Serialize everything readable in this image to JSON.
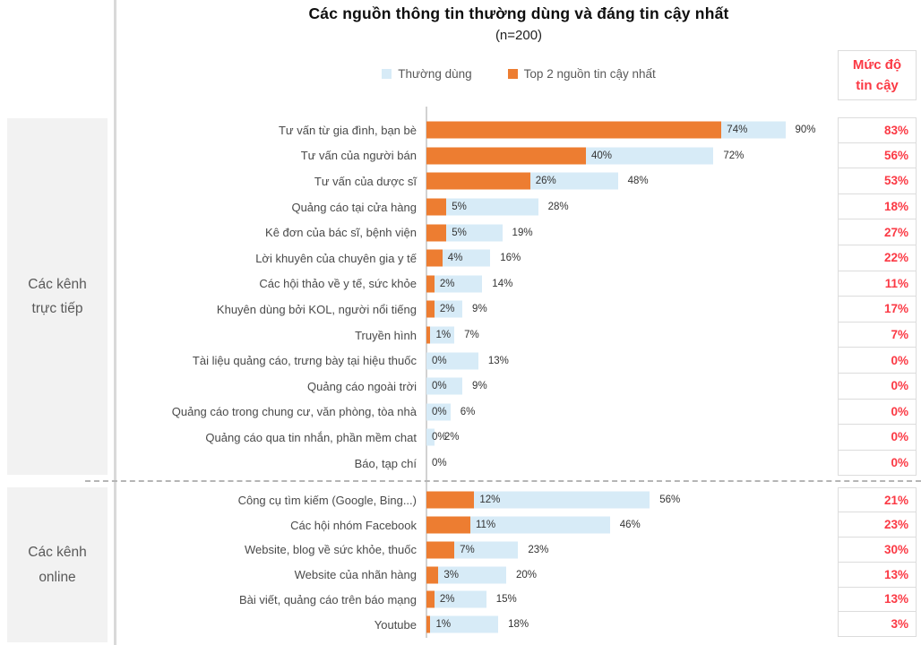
{
  "header": {
    "title": "Các nguồn thông tin thường dùng và đáng tin cậy nhất",
    "subtitle": "(n=200)"
  },
  "legend": {
    "items": [
      {
        "label": "Thường dùng",
        "color": "#d7ebf7"
      },
      {
        "label": "Top 2 nguồn tin cậy nhất",
        "color": "#ed7d31"
      }
    ]
  },
  "trust_header": {
    "line1": "Mức độ",
    "line2": "tin cậy"
  },
  "colors": {
    "used_bar": "#d7ebf7",
    "trusted_bar": "#ed7d31",
    "trust_text": "#fb3944",
    "sidebar_bg": "#f2f2f2",
    "divider": "#d9d9d9"
  },
  "chart_data": {
    "type": "bar",
    "orientation": "horizontal",
    "title": "Các nguồn thông tin thường dùng và đáng tin cậy nhất",
    "subtitle": "(n=200)",
    "value_unit": "%",
    "xlim": [
      0,
      100
    ],
    "series_names": [
      "Thường dùng",
      "Top 2 nguồn tin cậy nhất",
      "Mức độ tin cậy"
    ],
    "groups": [
      {
        "label": "Các kênh trực tiếp",
        "rows": [
          {
            "category": "Tư vấn từ gia đình, bạn bè",
            "used": 90,
            "trusted": 74,
            "trust_level": 83
          },
          {
            "category": "Tư vấn của người bán",
            "used": 72,
            "trusted": 40,
            "trust_level": 56
          },
          {
            "category": "Tư vấn của dược sĩ",
            "used": 48,
            "trusted": 26,
            "trust_level": 53
          },
          {
            "category": "Quảng cáo tại cửa hàng",
            "used": 28,
            "trusted": 5,
            "trust_level": 18
          },
          {
            "category": "Kê đơn của bác sĩ, bệnh viện",
            "used": 19,
            "trusted": 5,
            "trust_level": 27
          },
          {
            "category": "Lời khuyên của chuyên gia y tế",
            "used": 16,
            "trusted": 4,
            "trust_level": 22
          },
          {
            "category": "Các hội thảo về y tế, sức khỏe",
            "used": 14,
            "trusted": 2,
            "trust_level": 11
          },
          {
            "category": "Khuyên dùng bởi KOL, người nổi tiếng",
            "used": 9,
            "trusted": 2,
            "trust_level": 17
          },
          {
            "category": "Truyền hình",
            "used": 7,
            "trusted": 1,
            "trust_level": 7
          },
          {
            "category": "Tài liệu quảng cáo, trưng bày tại hiệu thuốc",
            "used": 13,
            "trusted": 0,
            "trust_level": 0
          },
          {
            "category": "Quảng cáo ngoài trời",
            "used": 9,
            "trusted": 0,
            "trust_level": 0
          },
          {
            "category": "Quảng cáo trong chung cư, văn phòng, tòa nhà",
            "used": 6,
            "trusted": 0,
            "trust_level": 0
          },
          {
            "category": "Quảng cáo qua tin nhắn, phần mềm chat",
            "used": 2,
            "trusted": 0,
            "trust_level": 0
          },
          {
            "category": "Báo, tạp chí",
            "used": 0,
            "trusted": 0,
            "trust_level": 0
          }
        ]
      },
      {
        "label": "Các kênh online",
        "rows": [
          {
            "category": "Công cụ tìm kiếm (Google, Bing...)",
            "used": 56,
            "trusted": 12,
            "trust_level": 21
          },
          {
            "category": "Các hội nhóm Facebook",
            "used": 46,
            "trusted": 11,
            "trust_level": 23
          },
          {
            "category": "Website, blog về sức khỏe, thuốc",
            "used": 23,
            "trusted": 7,
            "trust_level": 30
          },
          {
            "category": "Website của nhãn hàng",
            "used": 20,
            "trusted": 3,
            "trust_level": 13
          },
          {
            "category": "Bài viết, quảng cáo trên báo mạng",
            "used": 15,
            "trusted": 2,
            "trust_level": 13
          },
          {
            "category": "Youtube",
            "used": 18,
            "trusted": 1,
            "trust_level": 3
          }
        ]
      }
    ]
  }
}
